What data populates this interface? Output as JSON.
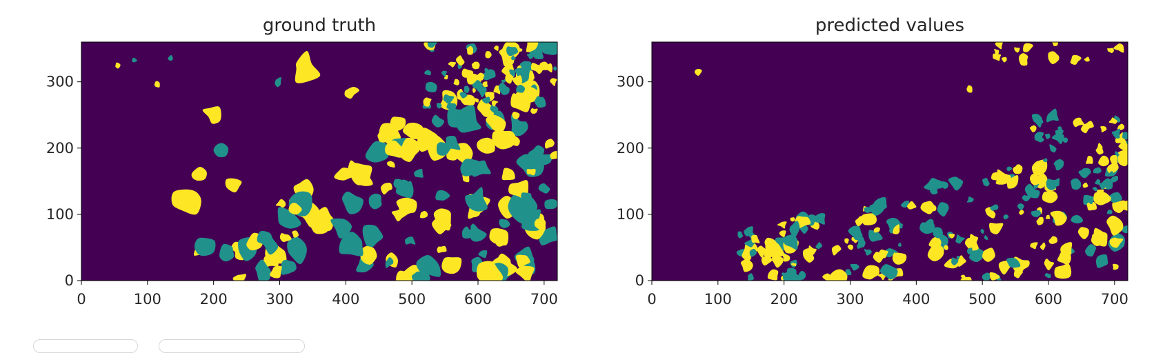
{
  "chart_data": [
    {
      "type": "heatmap",
      "title": "ground truth",
      "xlabel": "",
      "ylabel": "",
      "xlim": [
        0,
        720
      ],
      "ylim": [
        0,
        360
      ],
      "xticks": [
        "0",
        "100",
        "200",
        "300",
        "400",
        "500",
        "600",
        "700"
      ],
      "yticks": [
        "0",
        "100",
        "200",
        "300"
      ],
      "classes": [
        0,
        1,
        2
      ],
      "grid": false,
      "legend": "none"
    },
    {
      "type": "heatmap",
      "title": "predicted values",
      "xlabel": "",
      "ylabel": "",
      "xlim": [
        0,
        720
      ],
      "ylim": [
        0,
        360
      ],
      "xticks": [
        "0",
        "100",
        "200",
        "300",
        "400",
        "500",
        "600",
        "700"
      ],
      "yticks": [
        "0",
        "100",
        "200",
        "300"
      ],
      "classes": [
        0,
        1,
        2
      ],
      "grid": false,
      "legend": "none"
    }
  ],
  "colors": {
    "background_class": "#440154",
    "class_mid": "#21918c",
    "class_high": "#fde725",
    "axis": "#000000",
    "text": "#262626"
  }
}
